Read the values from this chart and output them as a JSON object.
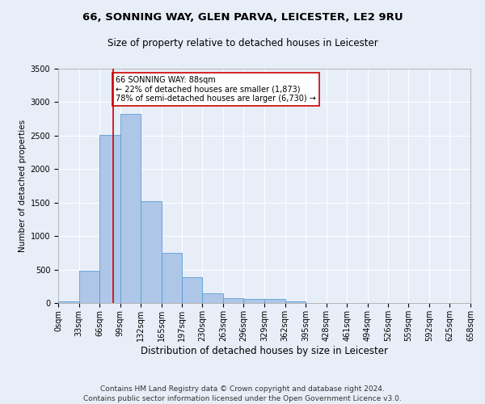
{
  "title1": "66, SONNING WAY, GLEN PARVA, LEICESTER, LE2 9RU",
  "title2": "Size of property relative to detached houses in Leicester",
  "xlabel": "Distribution of detached houses by size in Leicester",
  "ylabel": "Number of detached properties",
  "bar_values": [
    30,
    480,
    2510,
    2820,
    1520,
    750,
    390,
    140,
    75,
    60,
    60,
    20,
    0,
    0,
    0,
    0,
    0,
    0,
    0,
    0
  ],
  "bin_edges": [
    0,
    33,
    66,
    99,
    132,
    165,
    197,
    230,
    263,
    296,
    329,
    362,
    395,
    428,
    461,
    494,
    526,
    559,
    592,
    625,
    658
  ],
  "bin_labels": [
    "0sqm",
    "33sqm",
    "66sqm",
    "99sqm",
    "132sqm",
    "165sqm",
    "197sqm",
    "230sqm",
    "263sqm",
    "296sqm",
    "329sqm",
    "362sqm",
    "395sqm",
    "428sqm",
    "461sqm",
    "494sqm",
    "526sqm",
    "559sqm",
    "592sqm",
    "625sqm",
    "658sqm"
  ],
  "bar_color": "#aec6e8",
  "bar_edgecolor": "#5a9fd4",
  "vline_x": 88,
  "vline_color": "#cc0000",
  "ylim": [
    0,
    3500
  ],
  "yticks": [
    0,
    500,
    1000,
    1500,
    2000,
    2500,
    3000,
    3500
  ],
  "annotation_text": "66 SONNING WAY: 88sqm\n← 22% of detached houses are smaller (1,873)\n78% of semi-detached houses are larger (6,730) →",
  "annotation_box_color": "#ffffff",
  "annotation_box_edgecolor": "#cc0000",
  "footer1": "Contains HM Land Registry data © Crown copyright and database right 2024.",
  "footer2": "Contains public sector information licensed under the Open Government Licence v3.0.",
  "background_color": "#e8eef8",
  "plot_bg_color": "#e8eef8",
  "title1_fontsize": 9.5,
  "title2_fontsize": 8.5,
  "xlabel_fontsize": 8.5,
  "ylabel_fontsize": 7.5,
  "tick_fontsize": 7,
  "annotation_fontsize": 7,
  "footer_fontsize": 6.5
}
